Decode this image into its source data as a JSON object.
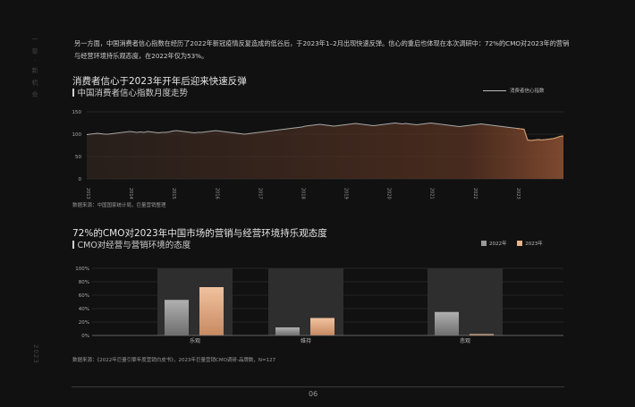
{
  "sidebar": {
    "top_text": "一 章 · 新 机 会",
    "bottom_text": "2023"
  },
  "intro": "另一方面，中国消费者信心指数在经历了2022年新冠疫情反复造成的低谷后，于2023年1–2月出现快速反弹。信心的重启也体现在本次调研中：72%的CMO对2023年的营销与经营环境持乐观态度，在2022年仅为53%。",
  "chart1": {
    "title": "消费者信心于2023年开年后迎来快速反弹",
    "subtitle": "中国消费者信心指数月度走势",
    "source": "数据来源：中国国家统计局，巨量营销整理",
    "colors": {
      "line": "#a8a8a8",
      "area_end": "#8a4f32",
      "grid": "#2c2c2c",
      "line_end": "#d89a6a"
    }
  },
  "chart2": {
    "title": "72%的CMO对2023年中国市场的营销与经营环境持乐观态度",
    "subtitle": "CMO对经营与营销环境的态度",
    "source": "数据来源：《2022年巨量引擎年度营销白皮书》，2023年巨量营销CMO调研-品牌数，N=127",
    "colors": {
      "s2022": "#9a9a9a",
      "s2023": "#e6b48e",
      "panel": "#2e2e2e"
    }
  },
  "chart_data": [
    {
      "type": "line",
      "title": "消费者信心于2023年开年后迎来快速反弹",
      "subtitle": "中国消费者信心指数月度走势",
      "series": [
        {
          "name": "消费者信心指数",
          "x_start": "2013-01",
          "freq": "monthly",
          "values": [
            99,
            100,
            101,
            102,
            101,
            100,
            100,
            101,
            102,
            103,
            104,
            105,
            106,
            105,
            104,
            105,
            104,
            106,
            105,
            104,
            103,
            104,
            104,
            105,
            107,
            108,
            107,
            106,
            105,
            104,
            103,
            104,
            104,
            105,
            106,
            107,
            108,
            107,
            106,
            105,
            104,
            103,
            102,
            101,
            100,
            101,
            102,
            103,
            104,
            105,
            106,
            107,
            108,
            109,
            110,
            111,
            112,
            113,
            114,
            115,
            116,
            118,
            119,
            120,
            121,
            122,
            121,
            120,
            119,
            118,
            119,
            120,
            121,
            122,
            123,
            124,
            123,
            122,
            121,
            120,
            119,
            120,
            121,
            122,
            123,
            124,
            125,
            124,
            123,
            124,
            123,
            122,
            121,
            122,
            123,
            124,
            125,
            124,
            123,
            122,
            121,
            120,
            119,
            118,
            117,
            118,
            119,
            120,
            121,
            122,
            123,
            122,
            121,
            120,
            119,
            118,
            117,
            116,
            115,
            114,
            113,
            112,
            111,
            87,
            86,
            87,
            88,
            87,
            88,
            89,
            90,
            92,
            95,
            96
          ]
        }
      ],
      "xticks": [
        "2013",
        "2014",
        "2015",
        "2016",
        "2017",
        "2018",
        "2019",
        "2020",
        "2021",
        "2022",
        "2023"
      ],
      "ylim": [
        0,
        150
      ],
      "yticks": [
        0,
        50,
        100,
        150
      ],
      "grid": true,
      "legend_position": "top-right"
    },
    {
      "type": "bar",
      "title": "72%的CMO对2023年中国市场的营销与经营环境持乐观态度",
      "subtitle": "CMO对经营与营销环境的态度",
      "categories": [
        "乐观",
        "维持",
        "悲观"
      ],
      "series": [
        {
          "name": "2022年",
          "values": [
            53,
            12,
            35
          ]
        },
        {
          "name": "2023年",
          "values": [
            72,
            26,
            2
          ]
        }
      ],
      "ylim": [
        0,
        100
      ],
      "yticks": [
        "0%",
        "20%",
        "40%",
        "60%",
        "80%",
        "100%"
      ],
      "legend_position": "top-right"
    }
  ],
  "page": {
    "number": "06"
  }
}
